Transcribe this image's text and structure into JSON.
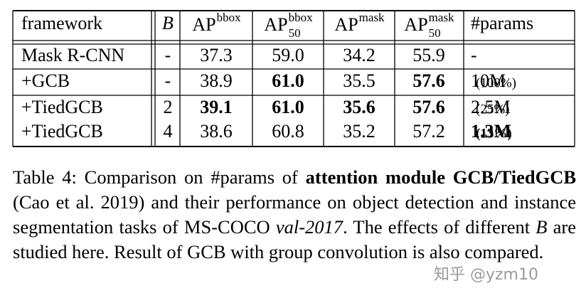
{
  "table": {
    "header": [
      "framework",
      {
        "base": "B",
        "italic": true
      },
      {
        "base": "AP",
        "sup": "bbox"
      },
      {
        "base": "AP",
        "sup": "bbox",
        "sub": "50"
      },
      {
        "base": "AP",
        "sup": "mask"
      },
      {
        "base": "AP",
        "sup": "mask",
        "sub": "50"
      },
      "#params"
    ],
    "rows": [
      [
        "Mask R-CNN",
        "-",
        "37.3",
        "59.0",
        "34.2",
        "55.9",
        "-"
      ],
      [
        "+GCB",
        "-",
        "38.9",
        {
          "text": "61.0",
          "bold": true
        },
        "35.5",
        {
          "text": "57.6",
          "bold": true
        },
        {
          "text": "10M",
          "note": "(100%)"
        }
      ],
      [
        "+TiedGCB",
        "2",
        {
          "text": "39.1",
          "bold": true
        },
        {
          "text": "61.0",
          "bold": true
        },
        {
          "text": "35.6",
          "bold": true
        },
        {
          "text": "57.6",
          "bold": true
        },
        {
          "text": "2.5M",
          "note": "(25%)"
        }
      ],
      [
        "+TiedGCB",
        "4",
        "38.6",
        "60.8",
        "35.2",
        "57.2",
        {
          "text": "1.3M",
          "note": "(13%)",
          "bold": true
        }
      ]
    ]
  },
  "caption": [
    {
      "text": "Table 4: Comparison on #params of "
    },
    {
      "text": "attention module GCB/TiedGCB",
      "style": "bold"
    },
    {
      "text": " (Cao et al. 2019) and their performance on object detection and instance segmentation tasks of MS-COCO "
    },
    {
      "text": "val-2017",
      "style": "italic"
    },
    {
      "text": ". The effects of different "
    },
    {
      "text": "B",
      "style": "italic"
    },
    {
      "text": " are studied here. Result of GCB with group convolution is also compared."
    }
  ],
  "watermark": "知乎 @yzm10"
}
